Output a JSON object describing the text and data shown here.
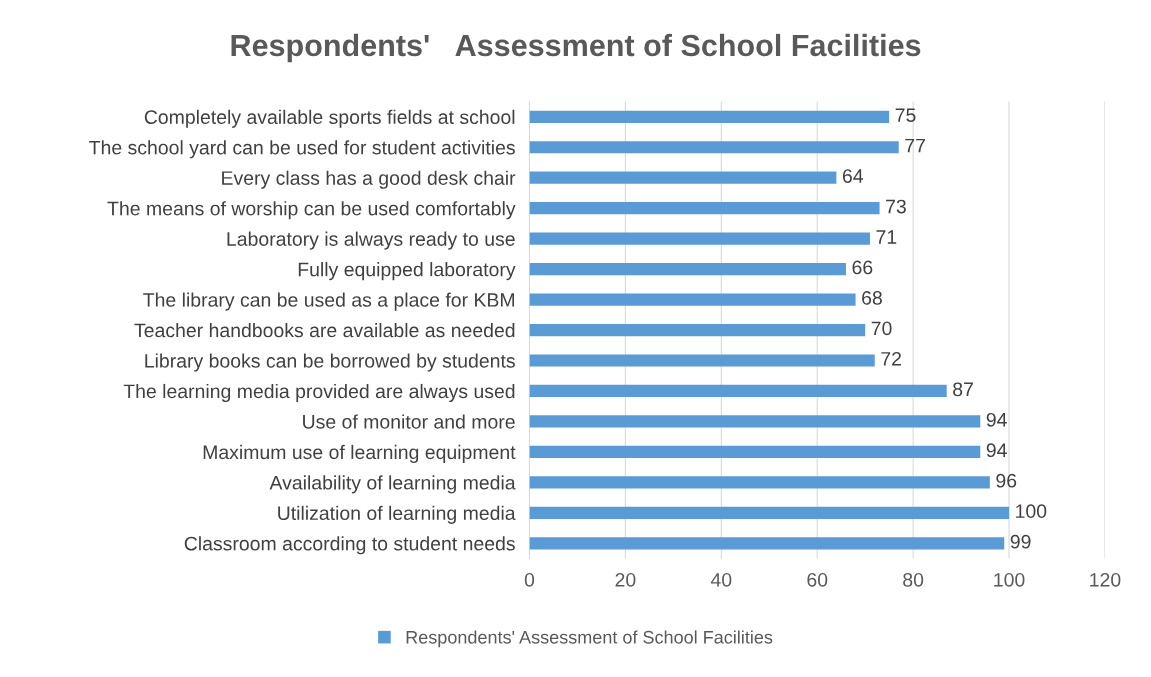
{
  "chart_data": {
    "type": "bar",
    "orientation": "horizontal",
    "title": "Respondents'   Assessment of School Facilities",
    "categories": [
      "Completely available sports fields at school",
      "The school yard can be used for student activities",
      "Every class has a good desk chair",
      "The means of worship can be used comfortably",
      "Laboratory is always ready to use",
      "Fully equipped laboratory",
      "The library can be used as a place for KBM",
      "Teacher handbooks are available as needed",
      "Library books can be borrowed by students",
      "The learning media provided are always used",
      "Use of monitor and more",
      "Maximum use of learning equipment",
      "Availability of learning media",
      "Utilization of learning media",
      "Classroom according to student needs"
    ],
    "series": [
      {
        "name": "Respondents' Assessment of School Facilities",
        "color": "#5b9bd5",
        "values": [
          75,
          77,
          64,
          73,
          71,
          66,
          68,
          70,
          72,
          87,
          94,
          94,
          96,
          100,
          99
        ]
      }
    ],
    "xlim": [
      0,
      120
    ],
    "xticks": [
      0,
      20,
      40,
      60,
      80,
      100,
      120
    ],
    "grid": "x",
    "legend": "bottom",
    "data_labels": true
  }
}
